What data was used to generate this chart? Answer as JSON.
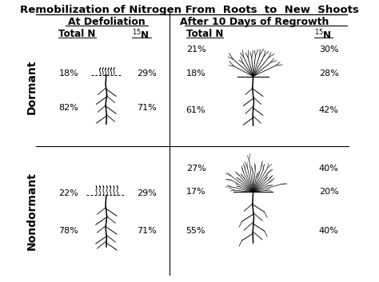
{
  "title": "Remobilization of Nitrogen From  Roots  to  New  Shoots",
  "col1_header": "At Defoliation",
  "col2_header": "After 10 Days of Regrowth",
  "row1_label": "Dormant",
  "row2_label": "Nondormant",
  "dormant_defoliation": {
    "stem_pct": "18%",
    "root_pct": "82%",
    "n15_stem": "29%",
    "n15_root": "71%"
  },
  "dormant_regrowth": {
    "shoot_pct": "21%",
    "stem_pct": "18%",
    "root_pct": "61%",
    "n15_shoot": "30%",
    "n15_stem": "28%",
    "n15_root": "42%"
  },
  "nondormant_defoliation": {
    "stem_pct": "22%",
    "root_pct": "78%",
    "n15_stem": "29%",
    "n15_root": "71%"
  },
  "nondormant_regrowth": {
    "shoot_pct": "27%",
    "stem_pct": "17%",
    "root_pct": "55%",
    "n15_shoot": "40%",
    "n15_stem": "20%",
    "n15_root": "40%"
  },
  "bg_color": "#ffffff",
  "text_color": "#000000",
  "title_fontsize": 9.5,
  "header_fontsize": 9.0,
  "label_fontsize": 8.5,
  "pct_fontsize": 8.0
}
